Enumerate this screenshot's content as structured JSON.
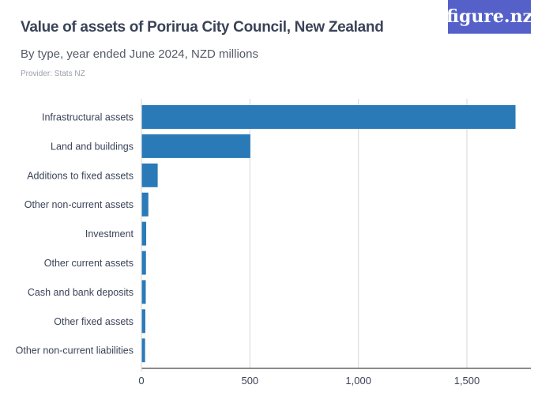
{
  "header": {
    "title": "Value of assets of Porirua City Council, New Zealand",
    "subtitle": "By type, year ended June 2024, NZD millions",
    "provider": "Provider: Stats NZ",
    "logo": "figure.nz"
  },
  "colors": {
    "bar": "#2a7ab8",
    "grid": "#dddddd",
    "axis": "#666666"
  },
  "chart_data": {
    "type": "bar",
    "orientation": "horizontal",
    "title": "Value of assets of Porirua City Council, New Zealand",
    "subtitle": "By type, year ended June 2024, NZD millions",
    "categories": [
      "Infrastructural assets",
      "Land and buildings",
      "Additions to fixed assets",
      "Other non-current assets",
      "Investment",
      "Other current assets",
      "Cash and bank deposits",
      "Other fixed assets",
      "Other non-current liabilities"
    ],
    "values": [
      1724,
      502,
      75,
      32,
      22,
      21,
      20,
      18,
      17
    ],
    "xlim": [
      0,
      1750
    ],
    "ticks": [
      0,
      500,
      1000,
      1500
    ],
    "tick_labels": [
      "0",
      "500",
      "1,000",
      "1,500"
    ],
    "grid": true
  }
}
